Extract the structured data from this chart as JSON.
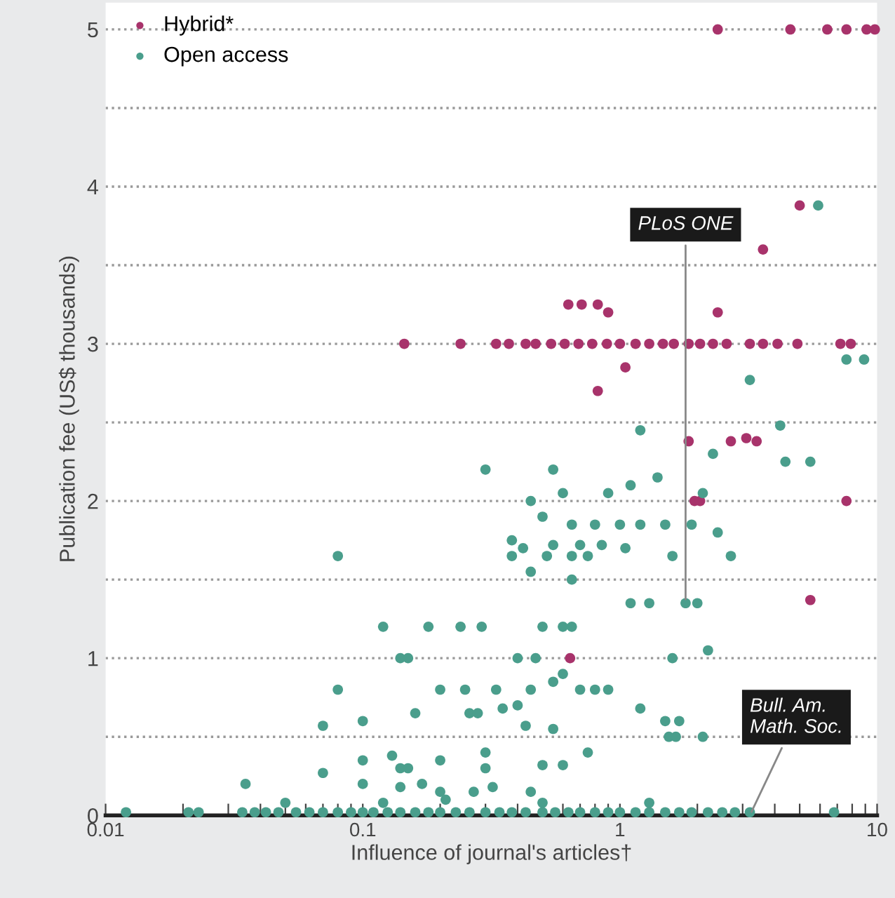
{
  "chart_data": {
    "type": "scatter",
    "xlabel": "Influence of journal's articles†",
    "ylabel": "Publication fee (US$ thousands)",
    "log": "x",
    "xlim": [
      0.01,
      10
    ],
    "ylim": [
      0,
      5.17
    ],
    "xticks": [
      {
        "value": 0.01,
        "label": "0.01"
      },
      {
        "value": 0.02,
        "label": null
      },
      {
        "value": 0.03,
        "label": null
      },
      {
        "value": 0.04,
        "label": null
      },
      {
        "value": 0.05,
        "label": null
      },
      {
        "value": 0.06,
        "label": null
      },
      {
        "value": 0.07,
        "label": null
      },
      {
        "value": 0.08,
        "label": null
      },
      {
        "value": 0.09,
        "label": null
      },
      {
        "value": 0.1,
        "label": "0.1"
      },
      {
        "value": 0.2,
        "label": null
      },
      {
        "value": 0.3,
        "label": null
      },
      {
        "value": 0.4,
        "label": null
      },
      {
        "value": 0.5,
        "label": null
      },
      {
        "value": 0.6,
        "label": null
      },
      {
        "value": 0.7,
        "label": null
      },
      {
        "value": 0.8,
        "label": null
      },
      {
        "value": 0.9,
        "label": null
      },
      {
        "value": 1,
        "label": "1"
      },
      {
        "value": 2,
        "label": null
      },
      {
        "value": 3,
        "label": null
      },
      {
        "value": 4,
        "label": null
      },
      {
        "value": 5,
        "label": null
      },
      {
        "value": 6,
        "label": null
      },
      {
        "value": 7,
        "label": null
      },
      {
        "value": 8,
        "label": null
      },
      {
        "value": 9,
        "label": null
      },
      {
        "value": 10,
        "label": "10"
      }
    ],
    "yticks": [
      0,
      {
        "value": 0.5,
        "label": null
      },
      1,
      {
        "value": 1.5,
        "label": null
      },
      2,
      {
        "value": 2.5,
        "label": null
      },
      3,
      {
        "value": 3.5,
        "label": null
      },
      4,
      {
        "value": 4.5,
        "label": null
      },
      5
    ],
    "grid": "y",
    "legend": "top left",
    "marker": "circle",
    "annotations": [
      {
        "text": "PLoS ONE",
        "x": 1.8,
        "y": 1.35
      },
      {
        "text": "Bull. Am.\nMath. Soc.",
        "x": 3.2,
        "y": 0
      }
    ],
    "series": [
      {
        "name": "Hybrid*",
        "color": "#a8336b",
        "x": [
          2.4,
          4.6,
          6.4,
          7.6,
          9.1,
          9.8,
          5.0,
          3.6,
          0.63,
          0.71,
          0.82,
          0.9,
          2.4,
          0.145,
          0.24,
          0.33,
          0.37,
          0.43,
          0.47,
          0.54,
          0.61,
          0.69,
          0.78,
          0.89,
          1.0,
          1.15,
          1.3,
          1.47,
          1.62,
          1.85,
          2.05,
          2.3,
          2.6,
          3.2,
          3.6,
          4.1,
          4.9,
          7.2,
          7.9,
          1.05,
          0.82,
          1.85,
          2.7,
          3.1,
          3.4,
          1.95,
          2.05,
          7.6,
          5.5,
          0.64
        ],
        "values": [
          5,
          5,
          5,
          5,
          5,
          5,
          3.88,
          3.6,
          3.25,
          3.25,
          3.25,
          3.2,
          3.2,
          3,
          3,
          3,
          3,
          3,
          3,
          3,
          3,
          3,
          3,
          3,
          3,
          3,
          3,
          3,
          3,
          3,
          3,
          3,
          3,
          3,
          3,
          3,
          3,
          3,
          3,
          2.85,
          2.7,
          2.38,
          2.38,
          2.4,
          2.38,
          2.0,
          2.0,
          2.0,
          1.37,
          1.0
        ]
      },
      {
        "name": "Open access",
        "color": "#4a9e8c",
        "x": [
          5.9,
          7.6,
          8.9,
          3.2,
          1.2,
          4.2,
          2.3,
          4.4,
          5.5,
          0.3,
          0.55,
          0.45,
          0.6,
          0.9,
          1.1,
          1.4,
          2.1,
          0.5,
          0.65,
          0.8,
          1.0,
          1.2,
          1.5,
          1.9,
          2.4,
          0.38,
          0.42,
          0.55,
          0.7,
          0.85,
          1.05,
          1.6,
          2.7,
          0.38,
          0.52,
          0.65,
          0.75,
          0.45,
          0.65,
          1.1,
          1.3,
          1.8,
          2.0,
          0.08,
          0.12,
          0.18,
          0.24,
          0.29,
          0.5,
          0.6,
          0.65,
          0.14,
          0.15,
          0.4,
          0.47,
          1.6,
          2.2,
          0.08,
          0.2,
          0.25,
          0.33,
          0.45,
          0.55,
          0.6,
          0.7,
          0.8,
          0.9,
          0.07,
          0.1,
          0.16,
          0.26,
          0.28,
          0.35,
          0.4,
          1.2,
          1.5,
          1.7,
          0.43,
          0.55,
          1.55,
          1.65,
          2.1,
          0.1,
          0.13,
          0.2,
          0.3,
          0.75,
          0.14,
          0.15,
          0.5,
          0.6,
          0.3,
          0.035,
          0.07,
          0.1,
          0.14,
          0.17,
          0.2,
          0.27,
          0.32,
          0.45,
          0.05,
          0.12,
          0.21,
          0.5,
          1.3,
          0.012,
          0.021,
          0.023,
          0.034,
          0.038,
          0.042,
          0.047,
          0.055,
          0.062,
          0.07,
          0.08,
          0.09,
          0.1,
          0.11,
          0.125,
          0.14,
          0.16,
          0.18,
          0.2,
          0.23,
          0.26,
          0.3,
          0.34,
          0.38,
          0.43,
          0.5,
          0.56,
          0.63,
          0.7,
          0.8,
          0.9,
          1.0,
          1.15,
          1.3,
          1.5,
          1.7,
          1.9,
          2.2,
          2.5,
          2.8,
          3.2,
          6.8
        ],
        "values": [
          3.88,
          2.9,
          2.9,
          2.77,
          2.45,
          2.48,
          2.3,
          2.25,
          2.25,
          2.2,
          2.2,
          2.0,
          2.05,
          2.05,
          2.1,
          2.15,
          2.05,
          1.9,
          1.85,
          1.85,
          1.85,
          1.85,
          1.85,
          1.85,
          1.8,
          1.75,
          1.7,
          1.72,
          1.72,
          1.72,
          1.7,
          1.65,
          1.65,
          1.65,
          1.65,
          1.65,
          1.65,
          1.55,
          1.5,
          1.35,
          1.35,
          1.35,
          1.35,
          1.65,
          1.2,
          1.2,
          1.2,
          1.2,
          1.2,
          1.2,
          1.2,
          1.0,
          1.0,
          1.0,
          1.0,
          1.0,
          1.05,
          0.8,
          0.8,
          0.8,
          0.8,
          0.8,
          0.85,
          0.9,
          0.8,
          0.8,
          0.8,
          0.57,
          0.6,
          0.65,
          0.65,
          0.65,
          0.68,
          0.7,
          0.68,
          0.6,
          0.6,
          0.57,
          0.55,
          0.5,
          0.5,
          0.5,
          0.35,
          0.38,
          0.35,
          0.4,
          0.4,
          0.3,
          0.3,
          0.32,
          0.32,
          0.3,
          0.2,
          0.27,
          0.2,
          0.18,
          0.2,
          0.15,
          0.15,
          0.18,
          0.15,
          0.08,
          0.08,
          0.1,
          0.08,
          0.08,
          0.02,
          0.02,
          0.02,
          0.02,
          0.02,
          0.02,
          0.02,
          0.02,
          0.02,
          0.02,
          0.02,
          0.02,
          0.02,
          0.02,
          0.02,
          0.02,
          0.02,
          0.02,
          0.02,
          0.02,
          0.02,
          0.02,
          0.02,
          0.02,
          0.02,
          0.02,
          0.02,
          0.02,
          0.02,
          0.02,
          0.02,
          0.02,
          0.02,
          0.02,
          0.02,
          0.02,
          0.02,
          0.02,
          0.02,
          0.02,
          0.02,
          0.02
        ]
      }
    ]
  }
}
